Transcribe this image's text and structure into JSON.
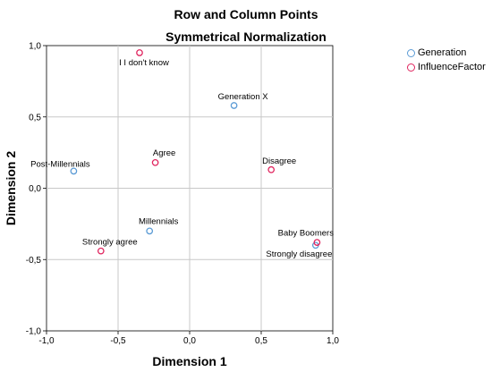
{
  "chart_data": {
    "type": "scatter",
    "title": "Row and Column Points",
    "subtitle": "Symmetrical Normalization",
    "xlabel": "Dimension 1",
    "ylabel": "Dimension 2",
    "xlim": [
      -1.0,
      1.0
    ],
    "ylim": [
      -1.0,
      1.0
    ],
    "xticks": [
      "-1,0",
      "-0,5",
      "0,0",
      "0,5",
      "1,0"
    ],
    "yticks": [
      "-1,0",
      "-0,5",
      "0,0",
      "0,5",
      "1,0"
    ],
    "grid": true,
    "legend_position": "top-right",
    "series": [
      {
        "name": "Generation",
        "color": "#5b9bd5",
        "points": [
          {
            "label": "Generation X",
            "x": 0.31,
            "y": 0.58
          },
          {
            "label": "Post-Millennials",
            "x": -0.81,
            "y": 0.12
          },
          {
            "label": "Millennials",
            "x": -0.28,
            "y": -0.3
          },
          {
            "label": "Baby Boomers",
            "x": 0.88,
            "y": -0.4
          }
        ]
      },
      {
        "name": "InfluenceFactor",
        "color": "#e0245e",
        "points": [
          {
            "label": "I I don't know",
            "x": -0.35,
            "y": 0.95
          },
          {
            "label": "Agree",
            "x": -0.24,
            "y": 0.18
          },
          {
            "label": "Disagree",
            "x": 0.57,
            "y": 0.13
          },
          {
            "label": "Strongly agree",
            "x": -0.62,
            "y": -0.44
          },
          {
            "label": "Strongly disagree",
            "x": 0.89,
            "y": -0.38
          }
        ]
      }
    ]
  }
}
